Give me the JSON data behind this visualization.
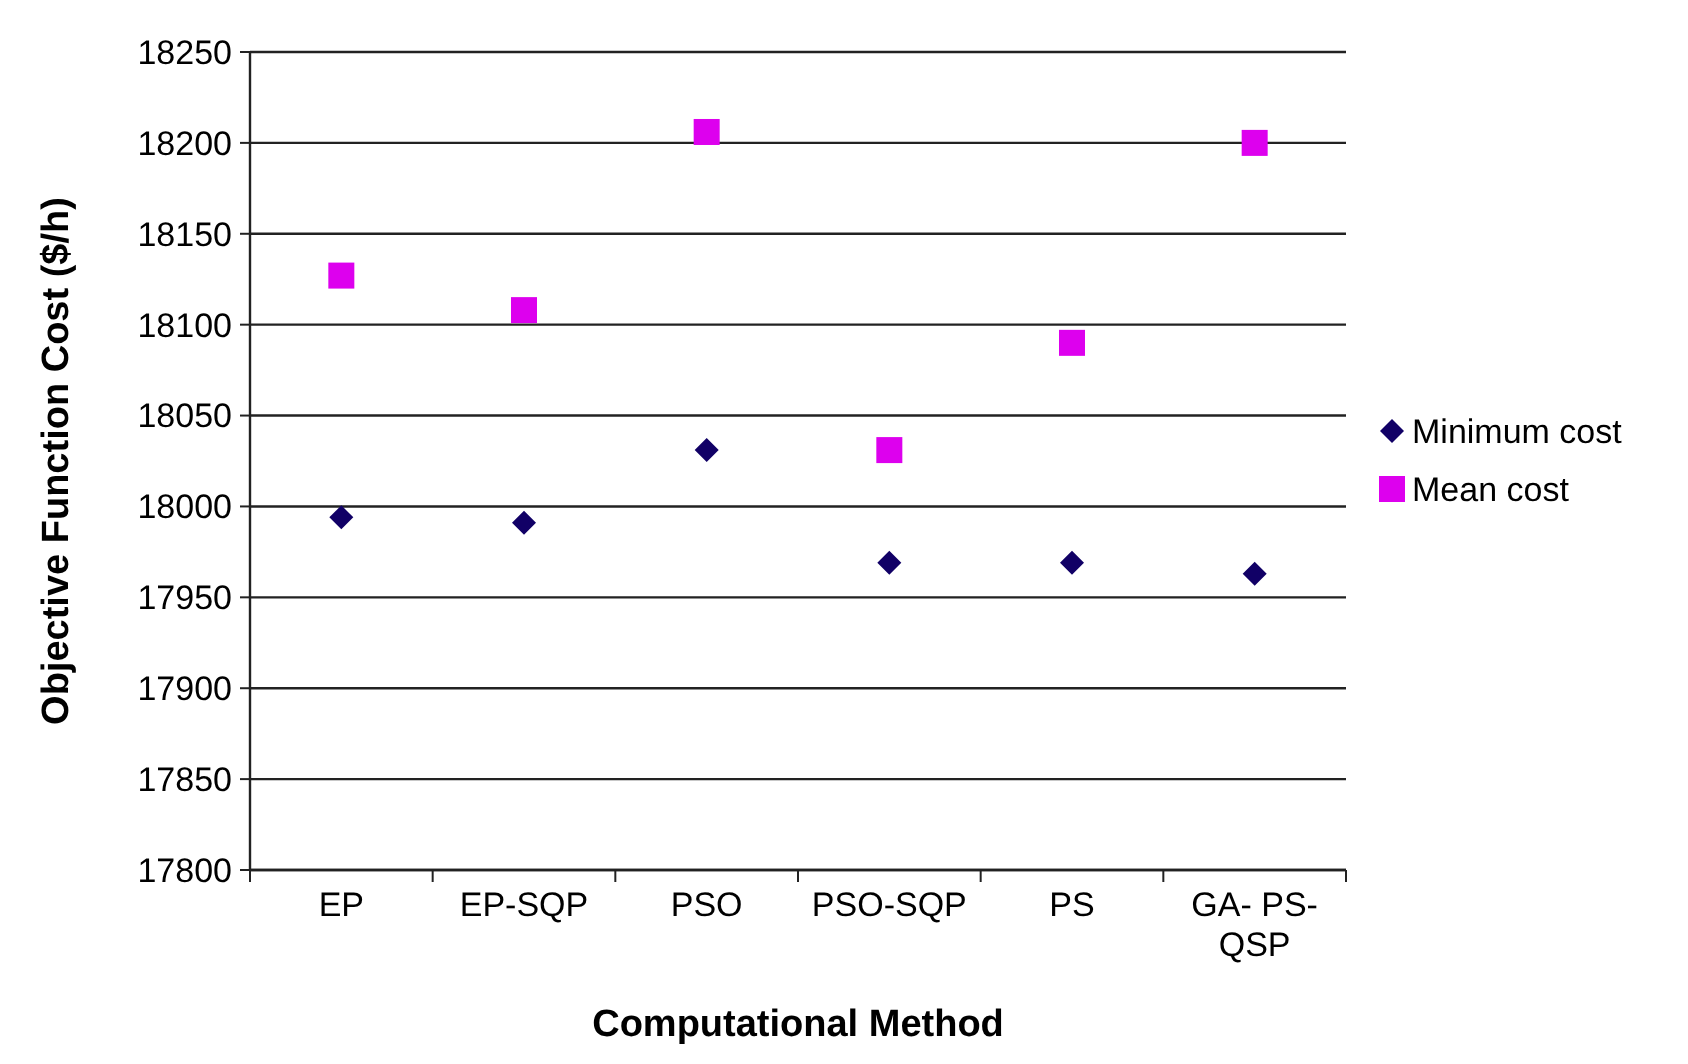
{
  "chart_data": {
    "type": "scatter",
    "xlabel": "Computational Method",
    "ylabel": "Objective Function Cost ($/h)",
    "categories": [
      "EP",
      "EP-SQP",
      "PSO",
      "PSO-SQP",
      "PS",
      "GA- PS-QSP"
    ],
    "series": [
      {
        "name": "Minimum cost",
        "color": "#110066",
        "marker": "diamond",
        "values": [
          17994,
          17991,
          18031,
          17969,
          17969,
          17963
        ]
      },
      {
        "name": "Mean cost",
        "color": "#dd00ee",
        "marker": "square",
        "values": [
          18127,
          18108,
          18206,
          18031,
          18090,
          18200
        ]
      }
    ],
    "ylim": [
      17800,
      18250
    ],
    "yticks": [
      17800,
      17850,
      17900,
      17950,
      18000,
      18050,
      18100,
      18150,
      18200,
      18250
    ],
    "grid": "y",
    "legend": "right"
  }
}
